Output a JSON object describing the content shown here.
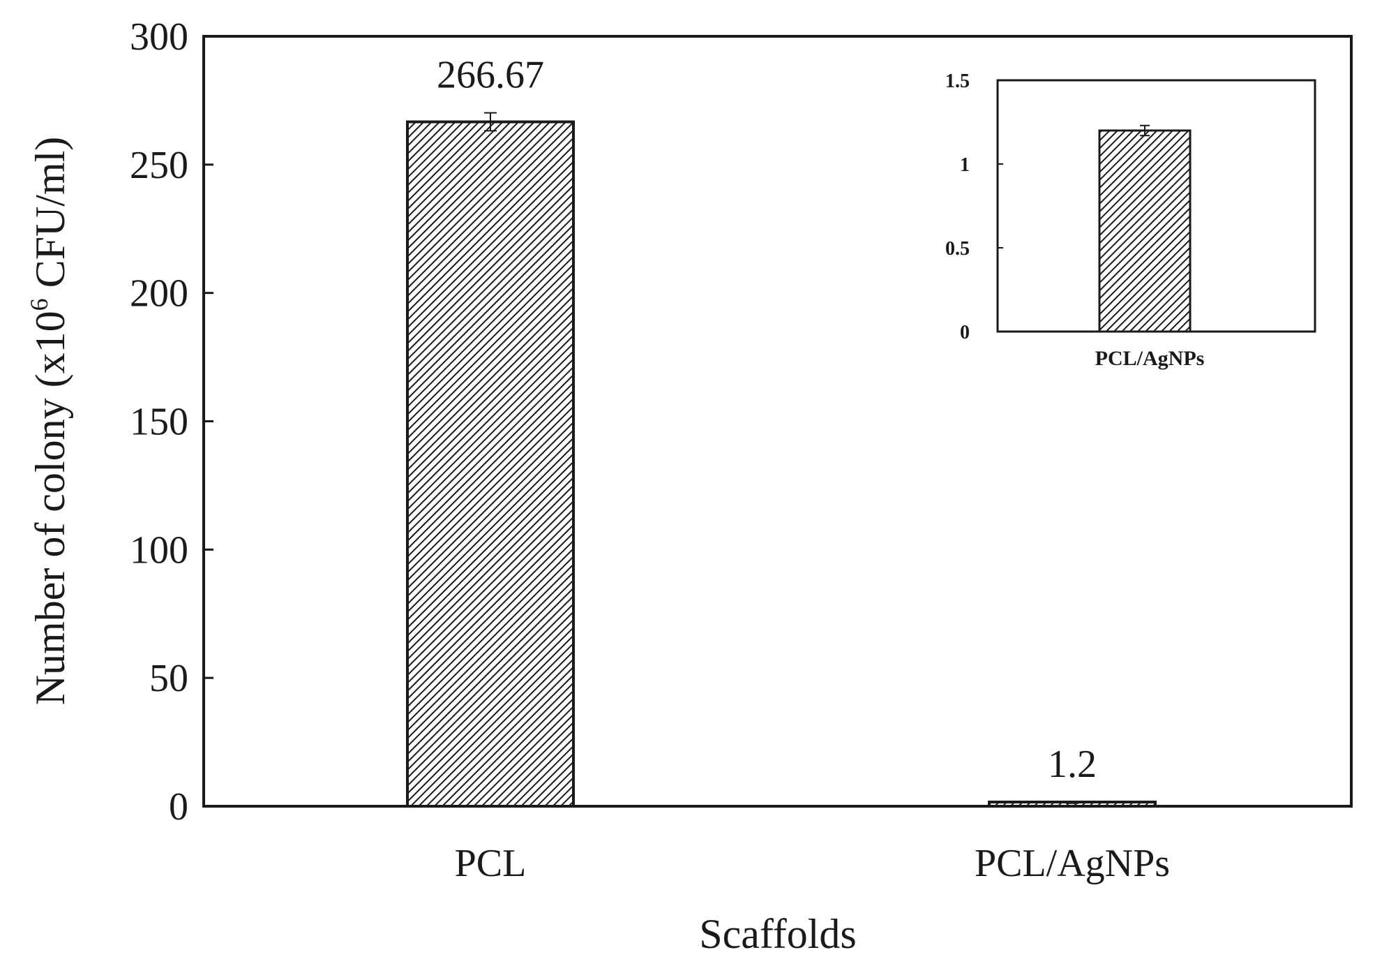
{
  "chart_data": [
    {
      "type": "bar",
      "title": "",
      "xlabel": "Scaffolds",
      "ylabel_main": "Number of colony (x10",
      "ylabel_sup": "6",
      "ylabel_tail": " CFU/ml)",
      "categories": [
        "PCL",
        "PCL/AgNPs"
      ],
      "values": [
        266.67,
        1.2
      ],
      "error": [
        3.5,
        0.03
      ],
      "data_labels": [
        "266.67",
        "1.2"
      ],
      "ylim": [
        0,
        300
      ],
      "yticks": [
        "0",
        "50",
        "100",
        "150",
        "200",
        "250",
        "300"
      ],
      "ytick_values": [
        0,
        50,
        100,
        150,
        200,
        250,
        300
      ],
      "bar_fill": "hatched",
      "grid": false
    },
    {
      "type": "bar",
      "inset": true,
      "xlabel": "PCL/AgNPs",
      "categories": [
        "PCL/AgNPs"
      ],
      "values": [
        1.2
      ],
      "error": [
        0.03
      ],
      "ylim": [
        0,
        1.5
      ],
      "yticks": [
        "0",
        "0.5",
        "1",
        "1.5"
      ],
      "ytick_values": [
        0,
        0.5,
        1,
        1.5
      ],
      "bar_fill": "hatched",
      "grid": false
    }
  ],
  "colors": {
    "axis": "#1a1a1a",
    "hatch": "#1a1a1a",
    "background": "#ffffff"
  }
}
